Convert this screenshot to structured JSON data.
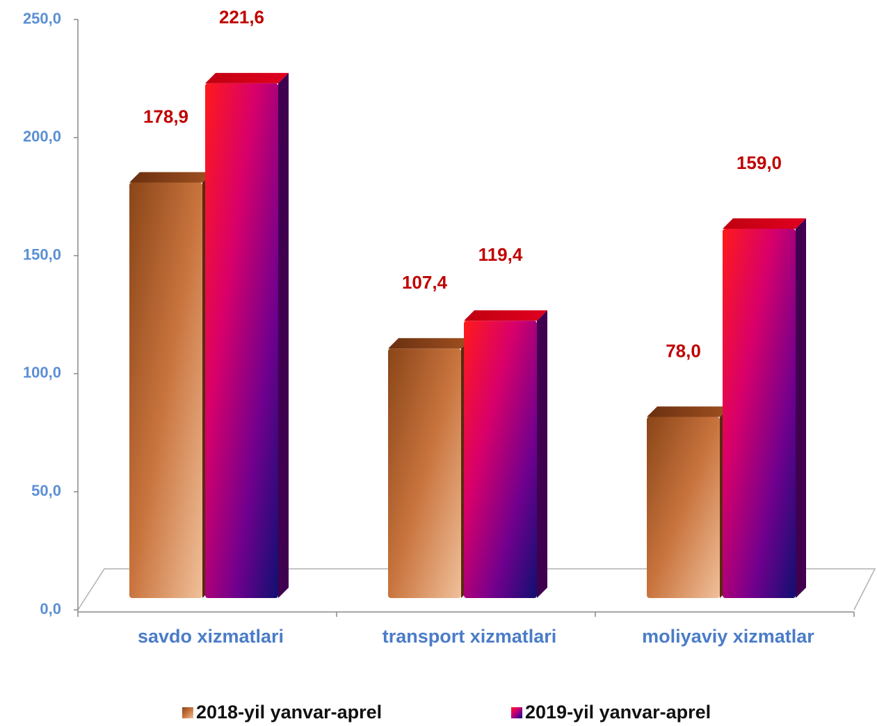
{
  "chart_data": {
    "type": "bar",
    "categories": [
      "savdo xizmatlari",
      "transport xizmatlari",
      "moliyaviy xizmatlar"
    ],
    "series": [
      {
        "name": "2018-yil yanvar-aprel",
        "color": "#b8652f",
        "values": [
          178.9,
          107.4,
          78.0
        ],
        "value_labels": [
          "178,9",
          "107,4",
          "78,0"
        ]
      },
      {
        "name": "2019-yil yanvar-aprel",
        "color": "#e0004a",
        "values": [
          221.6,
          119.4,
          159.0
        ],
        "value_labels": [
          "221,6",
          "119,4",
          "159,0"
        ]
      }
    ],
    "ylim": [
      0,
      250
    ],
    "yticks": [
      {
        "value": 0,
        "label": "0,0"
      },
      {
        "value": 50,
        "label": "50,0"
      },
      {
        "value": 100,
        "label": "100,0"
      },
      {
        "value": 150,
        "label": "150,0"
      },
      {
        "value": 200,
        "label": "200,0"
      },
      {
        "value": 250,
        "label": "250,0"
      }
    ]
  }
}
